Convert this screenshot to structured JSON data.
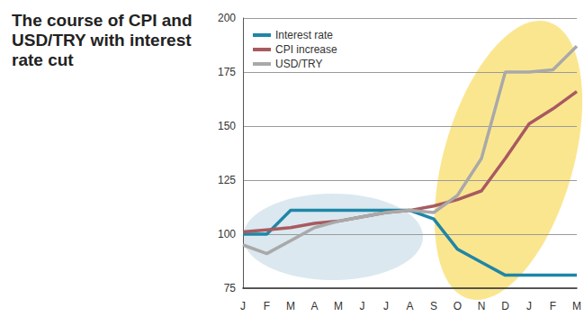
{
  "chart_data": {
    "type": "line",
    "title": "The course of CPI and USD/TRY with interest rate cut",
    "categories": [
      "J",
      "F",
      "M",
      "A",
      "M",
      "J",
      "J",
      "A",
      "S",
      "O",
      "N",
      "D",
      "J",
      "F",
      "M"
    ],
    "series": [
      {
        "name": "Interest rate",
        "color": "#1f86a6",
        "values": [
          100,
          100,
          111,
          111,
          111,
          111,
          111,
          111,
          107,
          93,
          87,
          81,
          81,
          81,
          81
        ]
      },
      {
        "name": "CPI increase",
        "color": "#a85a60",
        "values": [
          101,
          102,
          103,
          105,
          106,
          108,
          110,
          111,
          113,
          116,
          120,
          135,
          151,
          158,
          166
        ]
      },
      {
        "name": "USD/TRY",
        "color": "#a9a9a9",
        "values": [
          95,
          91,
          97,
          103,
          106,
          108,
          110,
          111,
          110,
          118,
          135,
          175,
          175,
          176,
          187
        ]
      }
    ],
    "ylim": [
      75,
      200
    ],
    "yticks": [
      75,
      100,
      125,
      150,
      175,
      200
    ],
    "grid": true,
    "legend": "top-left"
  }
}
